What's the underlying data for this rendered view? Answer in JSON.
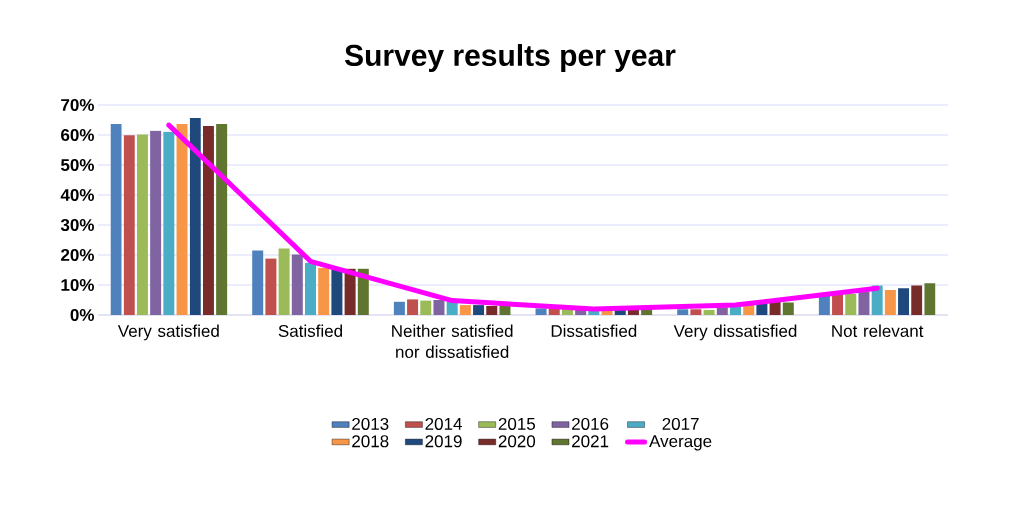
{
  "chart_data": {
    "type": "bar",
    "title": "Survey results per year",
    "categories": [
      "Very satisfied",
      "Satisfied",
      "Neither satisfied nor dissatisfied",
      "Dissatisfied",
      "Very dissatisfied",
      "Not relevant"
    ],
    "series": [
      {
        "name": "2013",
        "color": "#4f81bd",
        "values": [
          63.7,
          21.5,
          4.4,
          2.2,
          1.9,
          6.7
        ]
      },
      {
        "name": "2014",
        "color": "#c0504d",
        "values": [
          59.9,
          18.8,
          5.2,
          2.0,
          1.9,
          6.7
        ]
      },
      {
        "name": "2015",
        "color": "#9bbb59",
        "values": [
          60.2,
          22.2,
          4.8,
          2.0,
          1.7,
          7.0
        ]
      },
      {
        "name": "2016",
        "color": "#8064a2",
        "values": [
          61.4,
          20.2,
          5.0,
          2.0,
          2.6,
          7.8
        ]
      },
      {
        "name": "2017",
        "color": "#4bacc6",
        "values": [
          61.1,
          17.4,
          4.5,
          2.0,
          2.8,
          9.8
        ]
      },
      {
        "name": "2018",
        "color": "#f79646",
        "values": [
          63.7,
          15.7,
          3.3,
          2.0,
          3.3,
          8.3
        ]
      },
      {
        "name": "2019",
        "color": "#1f497d",
        "values": [
          65.7,
          15.2,
          3.3,
          2.0,
          4.4,
          8.9
        ]
      },
      {
        "name": "2020",
        "color": "#772c2a",
        "values": [
          63.0,
          15.4,
          3.0,
          2.0,
          4.4,
          9.8
        ]
      },
      {
        "name": "2021",
        "color": "#5f7530",
        "values": [
          63.7,
          15.4,
          3.0,
          2.0,
          4.2,
          10.6
        ]
      },
      {
        "name": "Average",
        "type": "line",
        "color": "#ff00ff",
        "values": [
          63.3,
          17.9,
          4.8,
          2.0,
          3.3,
          8.9
        ]
      }
    ],
    "ylim": [
      0,
      70
    ],
    "yticks": [
      {
        "value": 0,
        "label": "0%"
      },
      {
        "value": 10,
        "label": "10%"
      },
      {
        "value": 20,
        "label": "20%"
      },
      {
        "value": 30,
        "label": "30%"
      },
      {
        "value": 40,
        "label": "40%"
      },
      {
        "value": 50,
        "label": "50%"
      },
      {
        "value": 60,
        "label": "60%"
      },
      {
        "value": 70,
        "label": "70%"
      }
    ],
    "grid": "y",
    "legend": "bottom"
  }
}
